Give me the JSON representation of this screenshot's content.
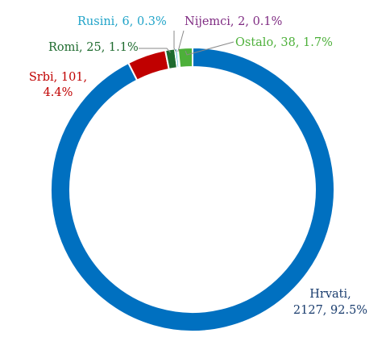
{
  "chart_data": {
    "type": "pie",
    "donut": true,
    "slices": [
      {
        "name": "Hrvati",
        "value": 2127,
        "percent": "92.5%",
        "color": "#0070c0",
        "label_lines": [
          "Hrvati,",
          "2127, 92.5%"
        ]
      },
      {
        "name": "Srbi",
        "value": 101,
        "percent": "4.4%",
        "color": "#c00000",
        "label_lines": [
          "Srbi, 101,",
          "4.4%"
        ]
      },
      {
        "name": "Romi",
        "value": 25,
        "percent": "1.1%",
        "color": "#1e6b2e",
        "label_lines": [
          "Romi, 25, 1.1%"
        ]
      },
      {
        "name": "Rusini",
        "value": 6,
        "percent": "0.3%",
        "color": "#1fa3c8",
        "label_lines": [
          "Rusini, 6, 0.3%"
        ]
      },
      {
        "name": "Nijemci",
        "value": 2,
        "percent": "0.1%",
        "color": "#7f2b82",
        "label_lines": [
          "Nijemci, 2, 0.1%"
        ]
      },
      {
        "name": "Ostalo",
        "value": 38,
        "percent": "1.7%",
        "color": "#4db03a",
        "label_lines": [
          "Ostalo, 38, 1.7%"
        ]
      }
    ],
    "label_colors": {
      "Hrvati": "#1a3d6e",
      "Srbi": "#c00000",
      "Romi": "#1e6b2e",
      "Rusini": "#1fa3c8",
      "Nijemci": "#7f2b82",
      "Ostalo": "#4db03a"
    }
  }
}
